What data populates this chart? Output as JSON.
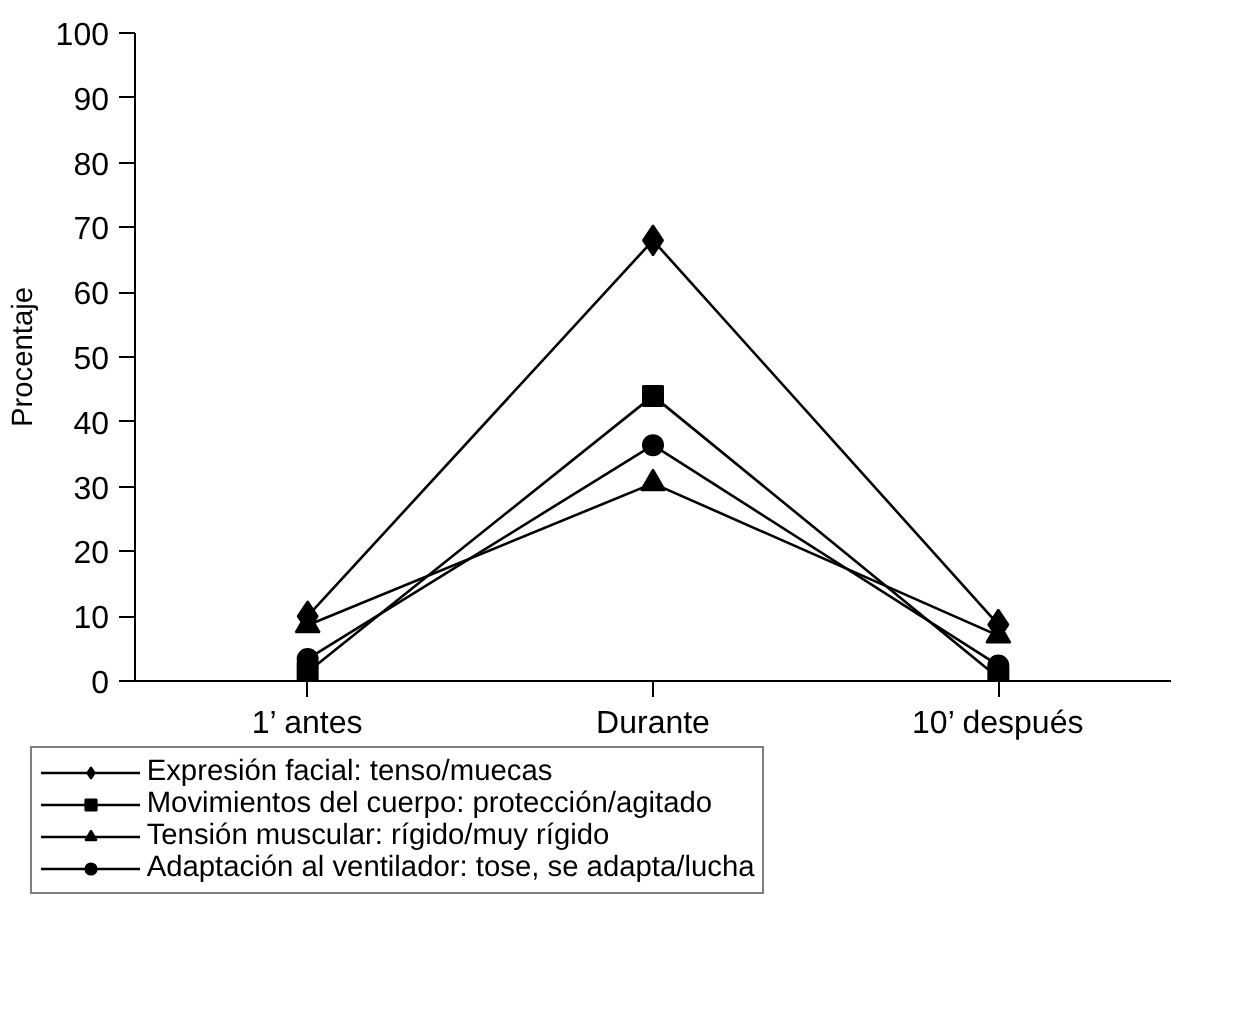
{
  "chart_data": {
    "type": "line",
    "ylabel": "Procentaje",
    "categories": [
      "1’ antes",
      "Durante",
      "10’ después"
    ],
    "ylim": [
      0,
      100
    ],
    "yticks": [
      0,
      10,
      20,
      30,
      40,
      50,
      60,
      70,
      80,
      90,
      100
    ],
    "grid": false,
    "legend": "bottom",
    "line_style": "solid",
    "series": [
      {
        "name": "Expresión facial: tenso/muecas",
        "color": "#000000",
        "marker": "diamond",
        "values": [
          10,
          68,
          8.7
        ]
      },
      {
        "name": "Movimientos del cuerpo: protección/agitado",
        "color": "#000000",
        "marker": "square",
        "values": [
          1.4,
          44,
          0.5
        ]
      },
      {
        "name": "Tensión muscular: rígido/muy rígido",
        "color": "#000000",
        "marker": "triangle",
        "values": [
          8.6,
          30.5,
          7
        ]
      },
      {
        "name": "Adaptación al ventilador: tose, se adapta/lucha",
        "color": "#000000",
        "marker": "circle",
        "values": [
          3.4,
          36.4,
          2.4
        ]
      }
    ]
  }
}
